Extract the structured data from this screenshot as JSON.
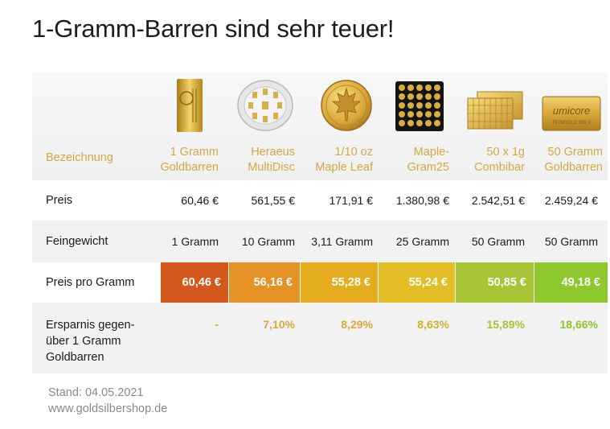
{
  "title": "1-Gramm-Barren sind sehr teuer!",
  "header": {
    "name_label": "Bezeichnung",
    "products": [
      {
        "line1": "1 Gramm",
        "line2": "Goldbarren",
        "icon": "gold-bar-1g-icon"
      },
      {
        "line1": "Heraeus",
        "line2": "MultiDisc",
        "icon": "multidisc-icon"
      },
      {
        "line1": "1/10 oz",
        "line2": "Maple Leaf",
        "icon": "maple-leaf-coin-icon"
      },
      {
        "line1": "Maple-",
        "line2": "Gram25",
        "icon": "maplegram25-icon"
      },
      {
        "line1": "50 x 1g",
        "line2": "Combibar",
        "icon": "combibar-icon"
      },
      {
        "line1": "50 Gramm",
        "line2": "Goldbarren",
        "icon": "gold-bar-50g-icon"
      }
    ],
    "coin_text": {
      "bar_small": "1 g FEIN 999,9",
      "umicore": "umicore",
      "umicore_sub": "FEINGOLD 999,9"
    }
  },
  "rows": {
    "preis": {
      "label": "Preis",
      "values": [
        "60,46 €",
        "561,55 €",
        "171,91 €",
        "1.380,98 €",
        "2.542,51 €",
        "2.459,24 €"
      ]
    },
    "feingewicht": {
      "label": "Feingewicht",
      "values": [
        "1 Gramm",
        "10 Gramm",
        "3,11 Gramm",
        "25 Gramm",
        "50 Gramm",
        "50 Gramm"
      ]
    },
    "preis_pro_gramm": {
      "label": "Preis pro Gramm",
      "values": [
        "60,46 €",
        "56,16 €",
        "55,28 €",
        "55,24 €",
        "50,85 €",
        "49,18 €"
      ],
      "colors": [
        "#d2581b",
        "#e59124",
        "#e5ac1d",
        "#e2bd25",
        "#a7c336",
        "#8dc82d"
      ]
    },
    "ersparnis": {
      "label_lines": [
        "Ersparnis gegen-",
        "über 1 Gramm",
        "Goldbarren"
      ],
      "values": [
        "-",
        "7,10%",
        "8,29%",
        "8,63%",
        "15,89%",
        "18,66%"
      ],
      "colors": [
        "#d9a73b",
        "#d9a73b",
        "#d9a73b",
        "#d4ad2f",
        "#a6c232",
        "#8fc52c"
      ]
    }
  },
  "footer": {
    "stand": "Stand: 04.05.2021",
    "url": "www.goldsilbershop.de"
  }
}
